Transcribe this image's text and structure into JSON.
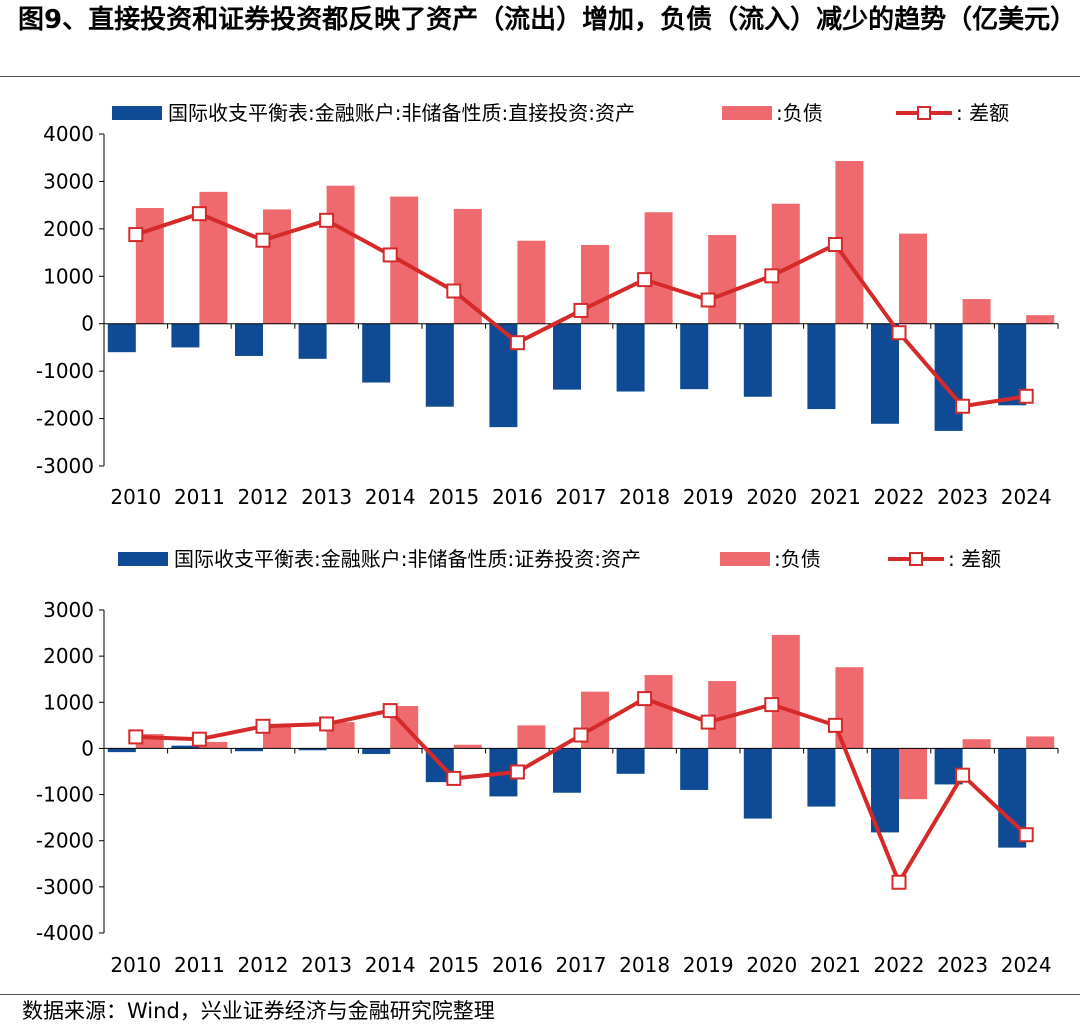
{
  "title": "图9、直接投资和证券投资都反映了资产（流出）增加，负债（流入）减少的趋势（亿美元）",
  "source": "数据来源：Wind，兴业证券经济与金融研究院整理",
  "colors": {
    "asset": "#0f4a94",
    "liability": "#ee6a6e",
    "net": "#d62a2a",
    "marker_fill": "#ffffff"
  },
  "chart_data": [
    {
      "type": "bar",
      "categories": [
        "2010",
        "2011",
        "2012",
        "2013",
        "2014",
        "2015",
        "2016",
        "2017",
        "2018",
        "2019",
        "2020",
        "2021",
        "2022",
        "2023",
        "2024"
      ],
      "ylim": [
        -3000,
        4000
      ],
      "yticks": [
        4000,
        3000,
        2000,
        1000,
        0,
        -1000,
        -2000,
        -3000
      ],
      "legend_position": "top",
      "series": [
        {
          "name": "国际收支平衡表:金融账户:非储备性质:直接投资:资产",
          "type": "bar",
          "values": [
            -600,
            -500,
            -680,
            -740,
            -1240,
            -1750,
            -2180,
            -1390,
            -1430,
            -1380,
            -1540,
            -1800,
            -2110,
            -2260,
            -1720
          ]
        },
        {
          "name": ":负债",
          "type": "bar",
          "values": [
            2440,
            2780,
            2410,
            2910,
            2680,
            2420,
            1750,
            1660,
            2350,
            1870,
            2530,
            3430,
            1900,
            520,
            180
          ]
        },
        {
          "name": ":  差额",
          "type": "line",
          "values": [
            1880,
            2320,
            1760,
            2180,
            1450,
            690,
            -400,
            280,
            930,
            500,
            1010,
            1670,
            -190,
            -1740,
            -1530
          ]
        }
      ]
    },
    {
      "type": "bar",
      "categories": [
        "2010",
        "2011",
        "2012",
        "2013",
        "2014",
        "2015",
        "2016",
        "2017",
        "2018",
        "2019",
        "2020",
        "2021",
        "2022",
        "2023",
        "2024"
      ],
      "ylim": [
        -4000,
        3000
      ],
      "yticks": [
        3000,
        2000,
        1000,
        0,
        -1000,
        -2000,
        -3000,
        -4000
      ],
      "legend_position": "top",
      "series": [
        {
          "name": "国际收支平衡表:金融账户:非储备性质:证券投资:资产",
          "type": "bar",
          "values": [
            -80,
            60,
            -60,
            -40,
            -120,
            -730,
            -1040,
            -960,
            -550,
            -900,
            -1520,
            -1260,
            -1820,
            -780,
            -2150
          ]
        },
        {
          "name": ":负债",
          "type": "bar",
          "values": [
            310,
            140,
            530,
            570,
            920,
            80,
            500,
            1230,
            1590,
            1460,
            2460,
            1760,
            -1100,
            200,
            260
          ]
        },
        {
          "name": ":  差额",
          "type": "line",
          "values": [
            250,
            200,
            480,
            530,
            820,
            -650,
            -510,
            290,
            1080,
            570,
            950,
            500,
            -2900,
            -580,
            -1870
          ]
        }
      ]
    }
  ]
}
